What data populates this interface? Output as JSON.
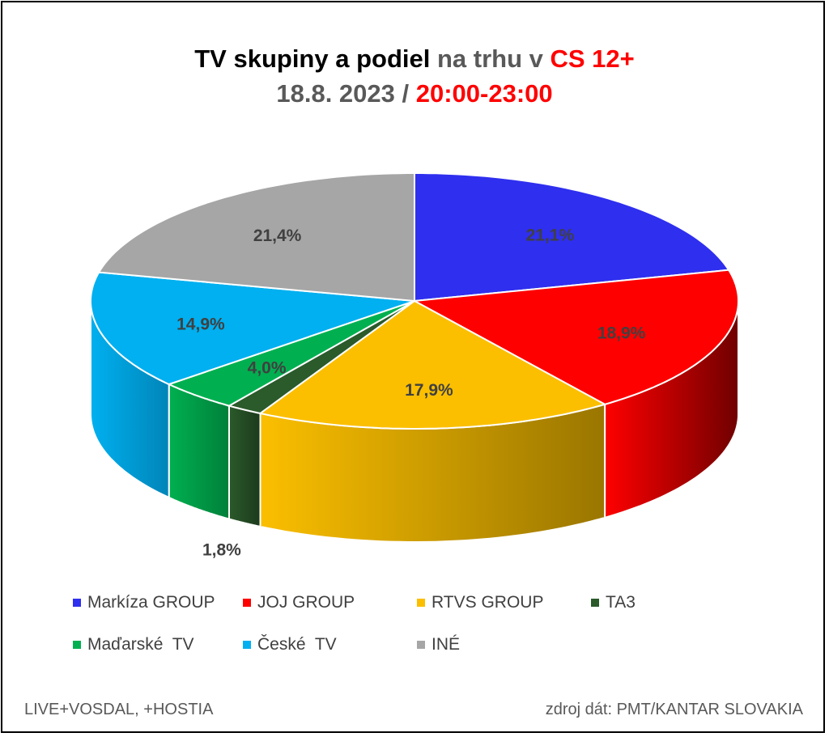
{
  "title": {
    "line1_part1": "TV skupiny a podiel",
    "line1_part2": " na trhu v ",
    "line1_part3": "CS 12+",
    "line2_part1": "18.8. 2023 / ",
    "line2_part2": "20:00-23:00"
  },
  "chart_data": {
    "type": "pie",
    "title": "TV skupiny a podiel na trhu v CS 12+ 18.8. 2023 / 20:00-23:00",
    "categories": [
      "Markíza GROUP",
      "JOJ GROUP",
      "RTVS GROUP",
      "TA3",
      "Maďarské  TV",
      "České  TV",
      "INÉ"
    ],
    "values": [
      21.1,
      18.9,
      17.9,
      1.8,
      4.0,
      14.9,
      21.4
    ],
    "labels": [
      "21,1%",
      "18,9%",
      "17,9%",
      "1,8%",
      "4,0%",
      "14,9%",
      "21,4%"
    ],
    "colors": [
      "#2f2fef",
      "#ff0000",
      "#fbbf00",
      "#2b5a2b",
      "#00b050",
      "#00b0f0",
      "#a6a6a6"
    ],
    "side_colors": [
      "#1a1a8a",
      "#700000",
      "#9a7600",
      "#1c3a1c",
      "#00803a",
      "#0085b8",
      "#6e6e6e"
    ],
    "legend_position": "bottom",
    "style": "3d"
  },
  "footer": {
    "left": "LIVE+VOSDAL, +HOSTIA",
    "right": "zdroj dát: PMT/KANTAR SLOVAKIA"
  }
}
